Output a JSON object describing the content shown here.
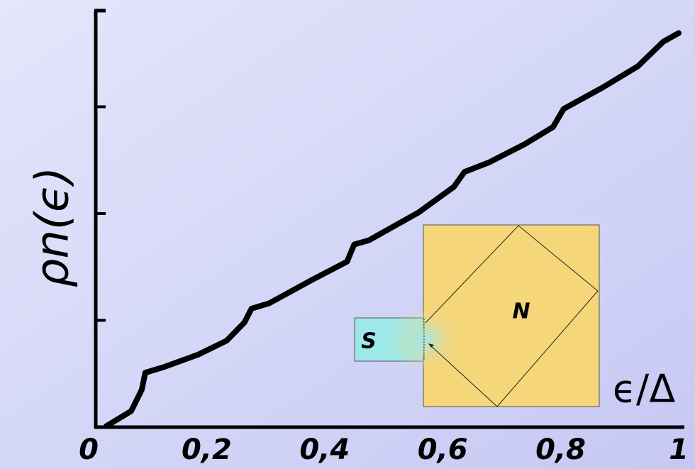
{
  "chart_data": {
    "type": "line",
    "xlabel": "ϵ/Δ",
    "ylabel": "ρn(ϵ)",
    "annotations": [
      "S",
      "N"
    ],
    "xlim": [
      0,
      1
    ],
    "ylim": [
      0,
      3.9
    ],
    "xticks": [
      0,
      {
        "value": 0.2,
        "label": "0,2"
      },
      {
        "value": 0.4,
        "label": "0,4"
      },
      {
        "value": 0.6,
        "label": "0,6"
      },
      {
        "value": 0.8,
        "label": "0,8"
      },
      1
    ],
    "yticks": [
      1,
      2,
      3
    ],
    "color": "#000000",
    "x": [
      0.03,
      0.072,
      0.09,
      0.096,
      0.126,
      0.186,
      0.234,
      0.264,
      0.276,
      0.306,
      0.379,
      0.438,
      0.45,
      0.475,
      0.559,
      0.619,
      0.637,
      0.679,
      0.739,
      0.787,
      0.805,
      0.871,
      0.931,
      0.974,
      1.0
    ],
    "values": [
      0.01,
      0.15,
      0.35,
      0.51,
      0.56,
      0.68,
      0.81,
      0.98,
      1.11,
      1.16,
      1.38,
      1.55,
      1.71,
      1.75,
      2.01,
      2.25,
      2.39,
      2.48,
      2.65,
      2.81,
      2.98,
      3.18,
      3.38,
      3.61,
      3.69
    ]
  }
}
